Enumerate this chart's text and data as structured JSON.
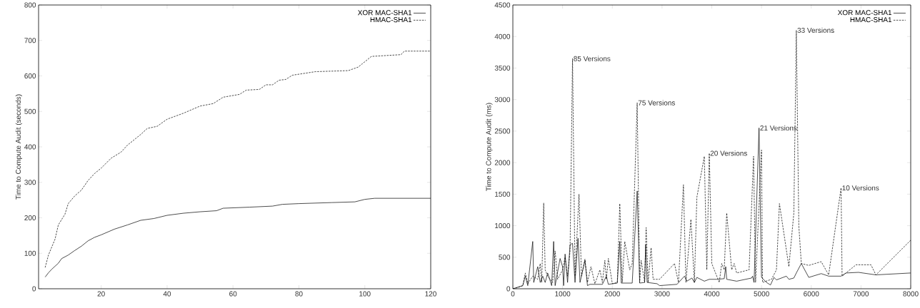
{
  "chart_data": [
    {
      "type": "line",
      "ylabel": "Time to Compute Audit (seconds)",
      "xlim": [
        1,
        120
      ],
      "ylim": [
        0,
        800
      ],
      "xticks": [
        20,
        40,
        60,
        80,
        100,
        120
      ],
      "yticks": [
        0,
        100,
        200,
        300,
        400,
        500,
        600,
        700,
        800
      ],
      "legend": "top right",
      "marker": "none",
      "series": [
        {
          "name": "XOR MAC-SHA1",
          "color": "#000000",
          "line_style": "solid",
          "x": [
            3,
            4,
            5,
            7,
            8,
            10,
            12,
            14,
            16,
            18,
            20,
            24,
            28,
            32,
            36,
            40,
            45,
            50,
            55,
            57,
            65,
            72,
            75,
            80,
            90,
            97,
            100,
            103,
            120
          ],
          "values": [
            33,
            45,
            55,
            72,
            85,
            95,
            108,
            120,
            135,
            145,
            152,
            168,
            180,
            193,
            198,
            207,
            213,
            217,
            220,
            227,
            230,
            233,
            238,
            240,
            243,
            245,
            252,
            255,
            255
          ]
        },
        {
          "name": "HMAC-SHA1",
          "color": "#000000",
          "line_style": "dashed",
          "x": [
            3,
            4,
            6,
            7,
            9,
            10,
            12,
            14,
            16,
            18,
            20,
            23,
            26,
            28,
            32,
            34,
            37,
            40,
            45,
            50,
            54,
            57,
            62,
            64,
            68,
            70,
            72,
            74,
            76,
            78,
            85,
            95,
            98,
            102,
            111,
            112,
            120
          ],
          "values": [
            60,
            95,
            140,
            180,
            210,
            240,
            262,
            278,
            305,
            325,
            340,
            368,
            385,
            405,
            435,
            452,
            458,
            478,
            495,
            515,
            522,
            540,
            548,
            560,
            562,
            575,
            575,
            588,
            590,
            602,
            612,
            615,
            625,
            655,
            660,
            670,
            670
          ]
        }
      ]
    },
    {
      "type": "line",
      "ylabel": "Time to Compute Audit (ms)",
      "xlim": [
        0,
        8000
      ],
      "ylim": [
        0,
        4500
      ],
      "xticks": [
        0,
        1000,
        2000,
        3000,
        4000,
        5000,
        6000,
        7000,
        8000
      ],
      "yticks": [
        0,
        500,
        1000,
        1500,
        2000,
        2500,
        3000,
        3500,
        4000,
        4500
      ],
      "legend": "top right",
      "marker": "none",
      "annotations": [
        {
          "text": "85 Versions",
          "x": 1200,
          "y": 3650
        },
        {
          "text": "75 Versions",
          "x": 2500,
          "y": 2950
        },
        {
          "text": "20 Versions",
          "x": 3950,
          "y": 2150
        },
        {
          "text": "21 Versions",
          "x": 4950,
          "y": 2550
        },
        {
          "text": "33 Versions",
          "x": 5700,
          "y": 4100
        },
        {
          "text": "10 Versions",
          "x": 6600,
          "y": 1600
        }
      ],
      "series": [
        {
          "name": "XOR MAC-SHA1",
          "color": "#000000",
          "line_style": "solid",
          "x": [
            0,
            200,
            250,
            300,
            400,
            420,
            500,
            550,
            600,
            650,
            700,
            780,
            820,
            850,
            950,
            1000,
            1020,
            1050,
            1100,
            1150,
            1200,
            1250,
            1310,
            1350,
            1450,
            1500,
            1550,
            1800,
            1880,
            1920,
            2100,
            2150,
            2180,
            2400,
            2500,
            2550,
            2650,
            2670,
            2700,
            2900,
            2950,
            3300,
            3450,
            3500,
            3600,
            3650,
            3700,
            3850,
            3950,
            4100,
            4250,
            4280,
            4300,
            4500,
            4800,
            4820,
            4850,
            4950,
            5000,
            5100,
            5180,
            5250,
            5300,
            5400,
            5500,
            5550,
            5650,
            5700,
            5800,
            5950,
            6200,
            6350,
            6600,
            6700,
            6950,
            7300,
            8000
          ],
          "values": [
            0,
            50,
            200,
            50,
            750,
            100,
            350,
            100,
            200,
            100,
            250,
            50,
            750,
            50,
            480,
            350,
            50,
            550,
            100,
            700,
            720,
            100,
            800,
            100,
            450,
            50,
            70,
            70,
            200,
            70,
            90,
            750,
            90,
            90,
            1550,
            90,
            100,
            700,
            100,
            80,
            50,
            70,
            200,
            120,
            170,
            100,
            180,
            120,
            150,
            150,
            160,
            350,
            150,
            120,
            170,
            200,
            100,
            2550,
            180,
            100,
            60,
            180,
            140,
            170,
            200,
            150,
            170,
            250,
            400,
            180,
            240,
            200,
            200,
            250,
            260,
            220,
            250
          ]
        },
        {
          "name": "HMAC-SHA1",
          "color": "#000000",
          "line_style": "dashed",
          "x": [
            0,
            100,
            200,
            250,
            300,
            400,
            500,
            550,
            580,
            620,
            650,
            700,
            800,
            850,
            900,
            1000,
            1050,
            1100,
            1150,
            1200,
            1250,
            1330,
            1380,
            1450,
            1500,
            1570,
            1650,
            1750,
            1800,
            1850,
            1880,
            1920,
            2000,
            2100,
            2150,
            2200,
            2250,
            2350,
            2400,
            2500,
            2550,
            2580,
            2650,
            2680,
            2720,
            2780,
            2820,
            2950,
            3250,
            3330,
            3430,
            3480,
            3580,
            3650,
            3700,
            3850,
            3900,
            3950,
            4000,
            4150,
            4200,
            4250,
            4300,
            4400,
            4450,
            4500,
            4750,
            4840,
            4880,
            5000,
            5020,
            5200,
            5300,
            5360,
            5550,
            5650,
            5700,
            5750,
            5800,
            5950,
            6200,
            6350,
            6600,
            6620,
            6900,
            7200,
            7300,
            8000
          ],
          "values": [
            0,
            20,
            50,
            250,
            80,
            200,
            150,
            400,
            100,
            1360,
            300,
            200,
            100,
            600,
            150,
            300,
            500,
            200,
            600,
            3650,
            200,
            1500,
            200,
            470,
            100,
            350,
            80,
            300,
            100,
            450,
            150,
            480,
            80,
            100,
            1350,
            100,
            750,
            300,
            400,
            2950,
            100,
            450,
            100,
            970,
            100,
            650,
            150,
            150,
            400,
            100,
            1650,
            100,
            1100,
            100,
            1450,
            2100,
            300,
            2150,
            400,
            100,
            400,
            300,
            1200,
            300,
            400,
            250,
            300,
            2100,
            100,
            2200,
            100,
            150,
            300,
            1350,
            350,
            1200,
            4100,
            1000,
            400,
            370,
            430,
            220,
            1600,
            200,
            380,
            380,
            220,
            770
          ]
        }
      ]
    }
  ]
}
